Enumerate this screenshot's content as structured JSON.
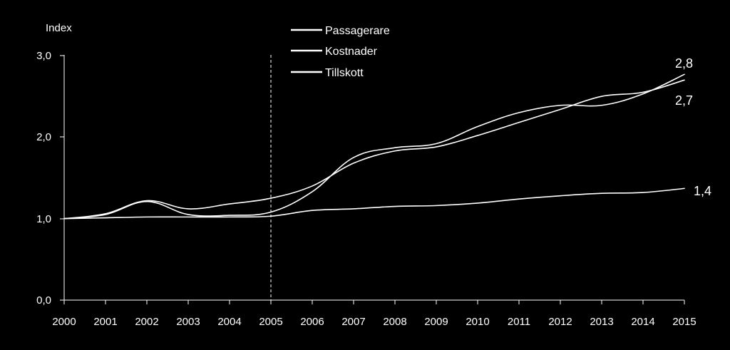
{
  "chart_data": {
    "type": "line",
    "ylabel": "Index",
    "ylim": [
      0,
      3
    ],
    "yticks": [
      "0,0",
      "1,0",
      "2,0",
      "3,0"
    ],
    "x": [
      "2000",
      "2001",
      "2002",
      "2003",
      "2004",
      "2005",
      "2006",
      "2007",
      "2008",
      "2009",
      "2010",
      "2011",
      "2012",
      "2013",
      "2014",
      "2015"
    ],
    "divider_at": "2005",
    "series": [
      {
        "name": "Passagerare",
        "values": [
          1.0,
          1.06,
          1.22,
          1.12,
          1.18,
          1.25,
          1.4,
          1.68,
          1.83,
          1.88,
          2.02,
          2.18,
          2.34,
          2.5,
          2.55,
          2.7
        ]
      },
      {
        "name": "Kostnader",
        "values": [
          1.0,
          1.05,
          1.21,
          1.05,
          1.04,
          1.08,
          1.33,
          1.75,
          1.87,
          1.92,
          2.13,
          2.3,
          2.39,
          2.39,
          2.53,
          2.77
        ]
      },
      {
        "name": "Tillskott",
        "values": [
          1.0,
          1.01,
          1.02,
          1.02,
          1.02,
          1.03,
          1.1,
          1.12,
          1.15,
          1.16,
          1.19,
          1.24,
          1.28,
          1.31,
          1.32,
          1.37
        ]
      }
    ],
    "end_labels": [
      "2,8",
      "2,7",
      "1,4"
    ],
    "legend_position": "top-center"
  }
}
